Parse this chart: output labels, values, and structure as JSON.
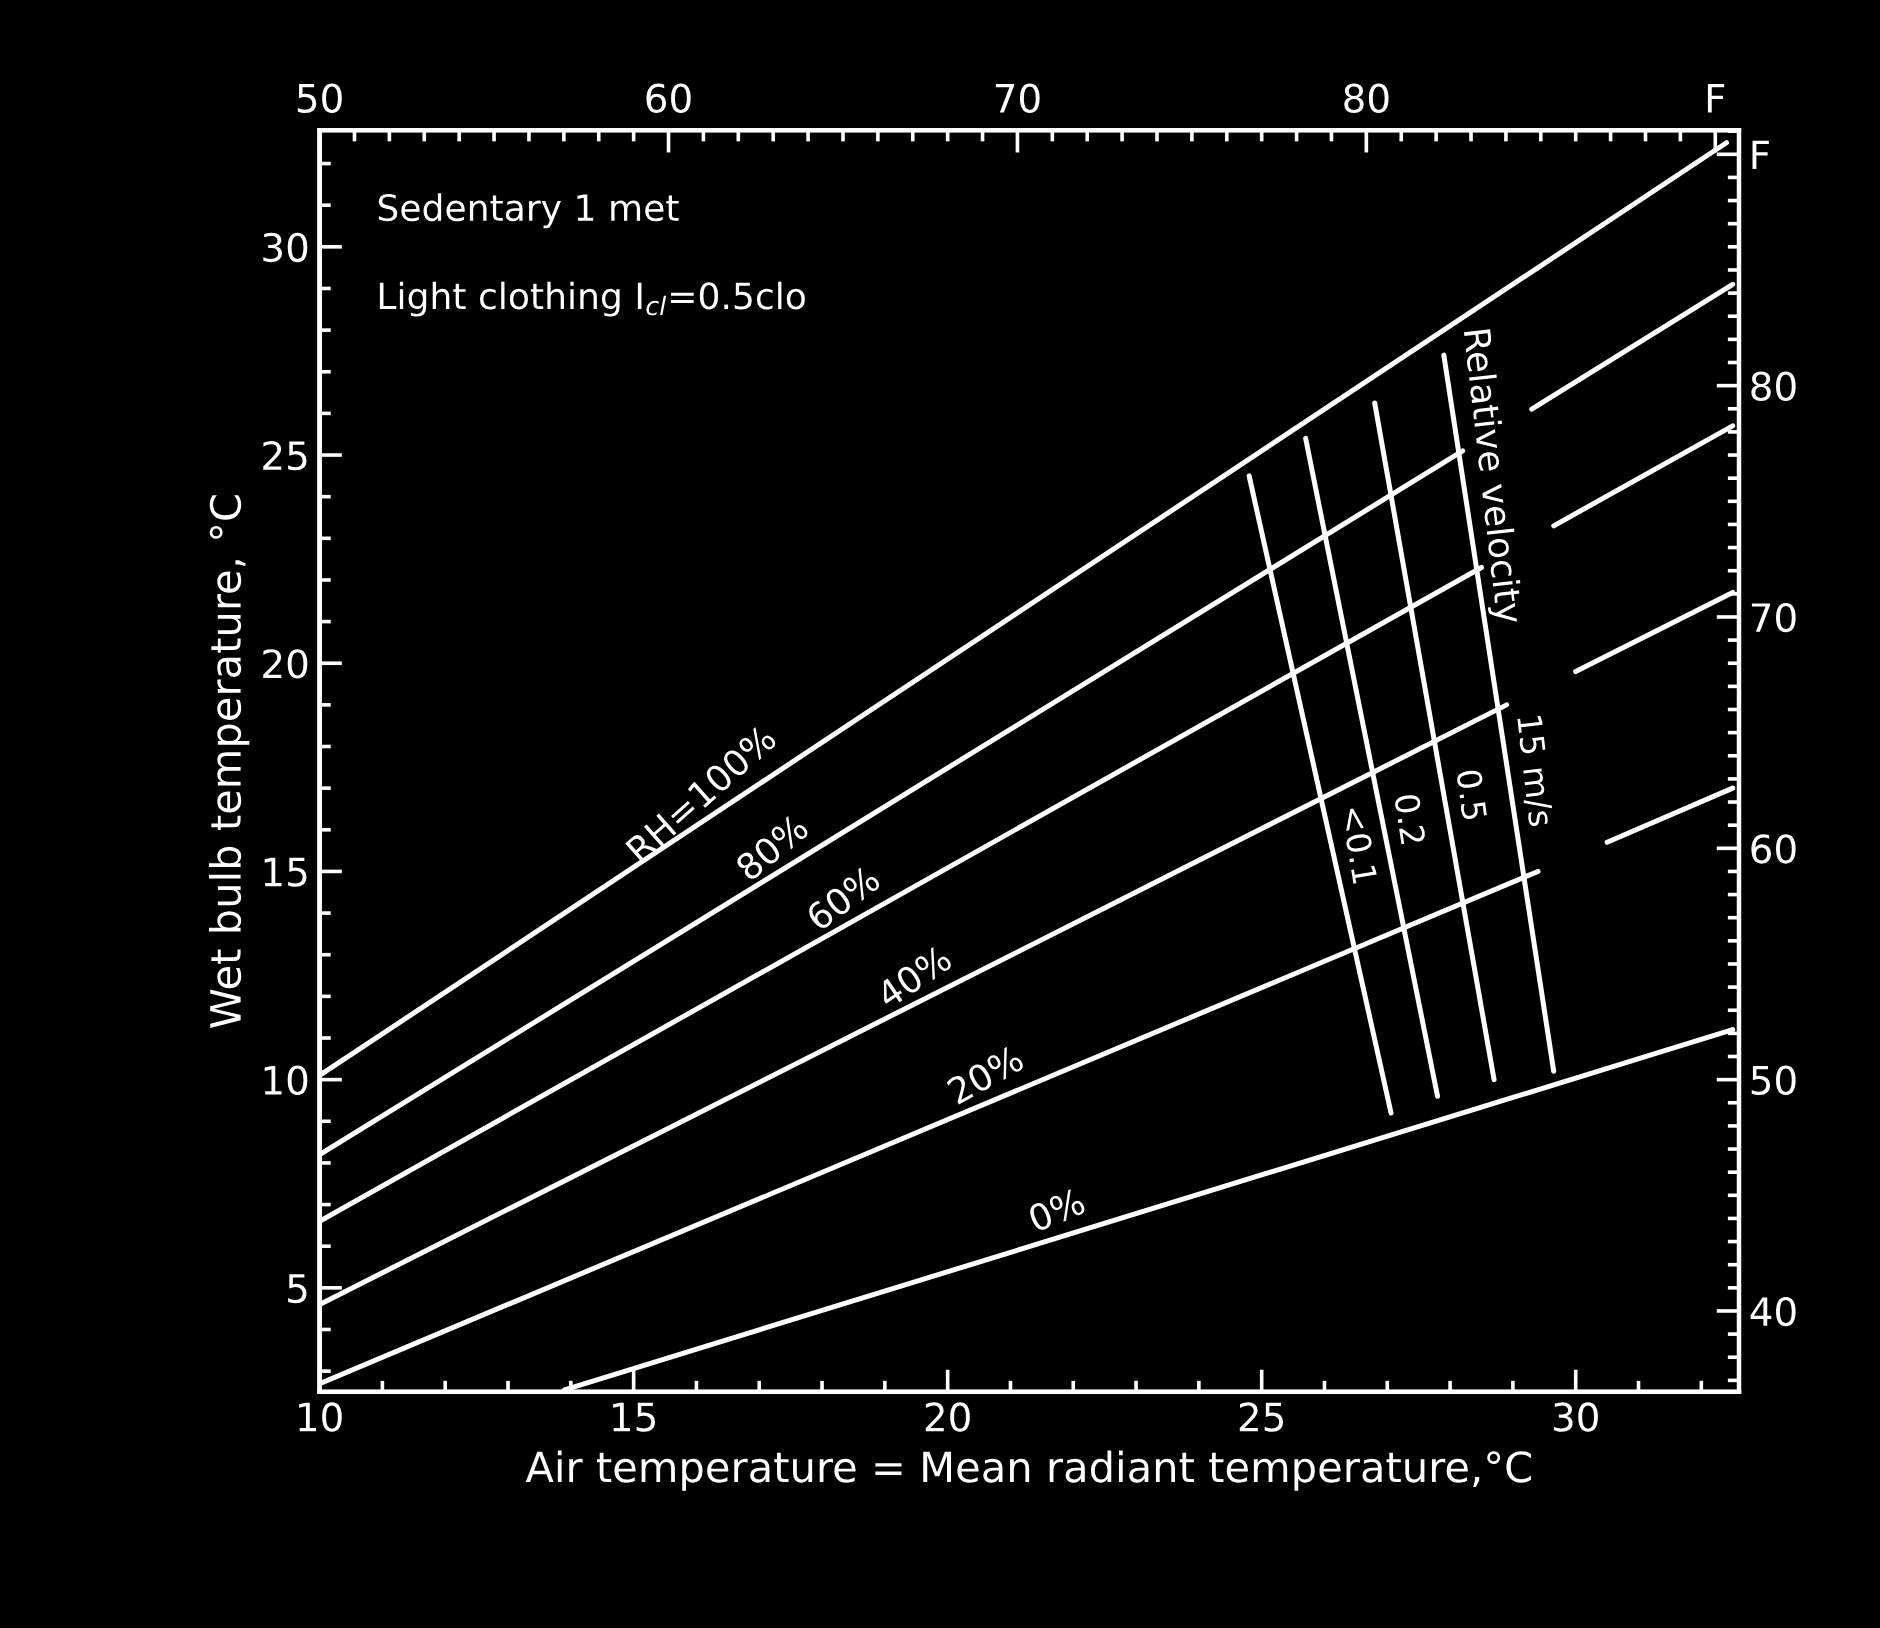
{
  "chart_data": {
    "type": "line",
    "xlabel": "Air temperature = Mean radiant temperature,°C",
    "ylabel": "Wet bulb temperature, °C",
    "xlim": [
      10,
      32.6
    ],
    "xticks": [
      10,
      15,
      20,
      25,
      30
    ],
    "ylim": [
      2.5,
      32.8
    ],
    "yticks": [
      5,
      10,
      15,
      20,
      25,
      30
    ],
    "x2lim": [
      50,
      90.68
    ],
    "x2ticks": [
      50,
      60,
      70,
      80,
      {
        "value": 90,
        "label": "F"
      }
    ],
    "y2lim": [
      36.5,
      91.04
    ],
    "y2ticks": [
      40,
      50,
      60,
      70,
      80,
      {
        "value": 90,
        "label": "F"
      }
    ],
    "grid": false,
    "legend": false,
    "marker": "none",
    "line_style": "solid",
    "annotations": [
      "Sedentary 1 met",
      "Light clothing I$_{cl}$=0.5clo",
      {
        "text": "Relative velocity",
        "x": 28.2,
        "y": 24.5
      }
    ],
    "series": [
      {
        "name": "RH=100%",
        "color": "#ffffff",
        "x": [
          10,
          32.4
        ],
        "values": [
          10.1,
          32.5
        ]
      },
      {
        "name": "80%",
        "color": "#ffffff",
        "x": [
          10,
          28.2,
          28.8,
          29.3,
          32.5
        ],
        "values": [
          8.2,
          25.1,
          null,
          26.1,
          29.1
        ]
      },
      {
        "name": "60%",
        "color": "#ffffff",
        "x": [
          10,
          28.5,
          29.1,
          29.65,
          32.5
        ],
        "values": [
          6.6,
          22.3,
          null,
          23.3,
          25.7
        ]
      },
      {
        "name": "40%",
        "color": "#ffffff",
        "x": [
          10,
          28.9,
          29.5,
          30.0,
          32.5
        ],
        "values": [
          4.6,
          19.0,
          null,
          19.8,
          21.7
        ]
      },
      {
        "name": "20%",
        "color": "#ffffff",
        "x": [
          10,
          29.4,
          30.0,
          30.5,
          32.5
        ],
        "values": [
          2.7,
          15.0,
          null,
          15.7,
          17.0
        ]
      },
      {
        "name": "0%",
        "color": "#ffffff",
        "x": [
          13.9,
          32.5
        ],
        "values": [
          2.55,
          11.2
        ]
      },
      {
        "name": "<0.1",
        "color": "#ffffff",
        "x": [
          24.8,
          27.06
        ],
        "values": [
          24.5,
          9.2
        ]
      },
      {
        "name": "0.2",
        "color": "#ffffff",
        "x": [
          25.7,
          27.8
        ],
        "values": [
          25.4,
          9.6
        ]
      },
      {
        "name": "0.5",
        "color": "#ffffff",
        "x": [
          26.8,
          28.7
        ],
        "values": [
          26.25,
          10.0
        ]
      },
      {
        "name": "15 m/s",
        "color": "#ffffff",
        "x": [
          27.9,
          29.65
        ],
        "values": [
          27.4,
          10.2
        ]
      }
    ]
  }
}
